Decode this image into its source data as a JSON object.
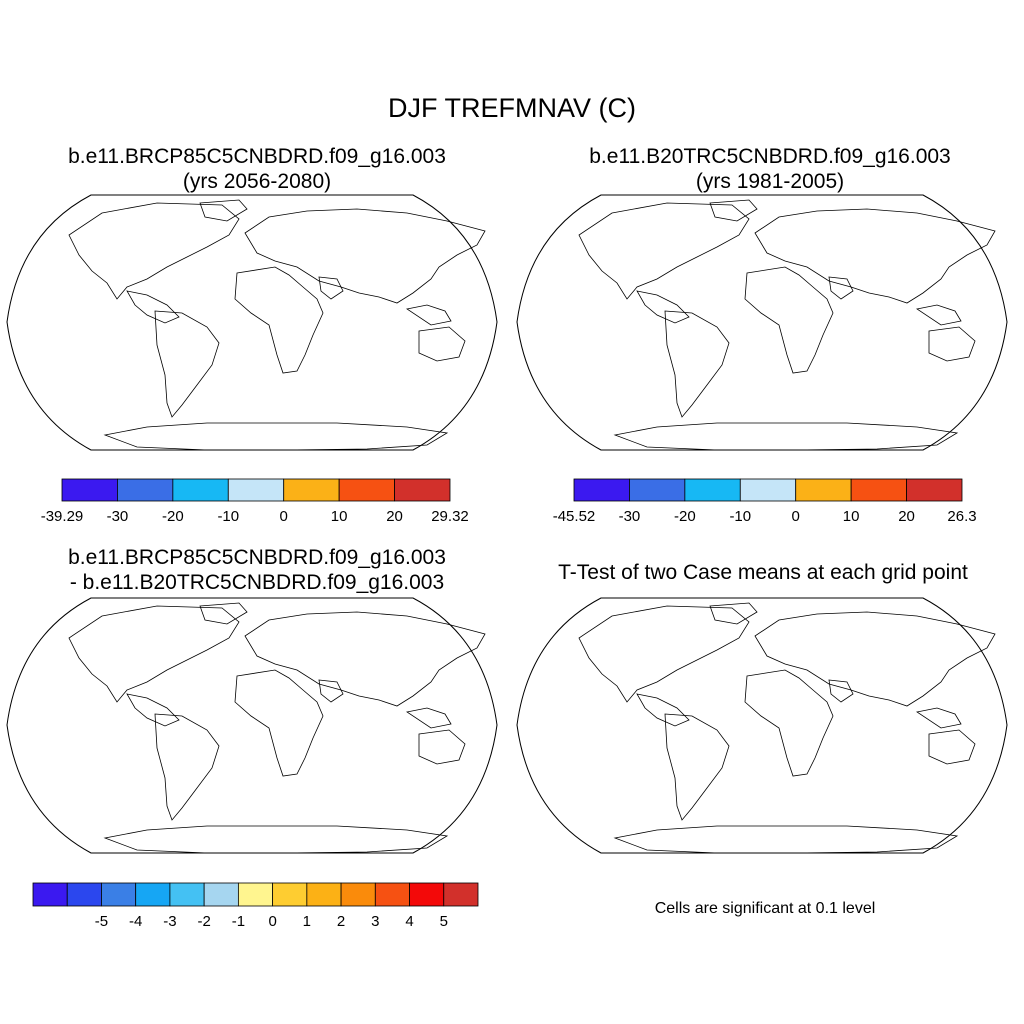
{
  "title": "DJF TREFMNAV (C)",
  "panels": [
    {
      "line1": "b.e11.BRCP85C5CNBDRD.f09_g16.003",
      "line2": "(yrs 2056-2080)"
    },
    {
      "line1": "b.e11.B20TRC5CNBDRD.f09_g16.003",
      "line2": "(yrs 1981-2005)"
    },
    {
      "line1": "b.e11.BRCP85C5CNBDRD.f09_g16.003",
      "line2": "- b.e11.B20TRC5CNBDRD.f09_g16.003"
    },
    {
      "line1": "T-Test of two Case means at each grid point"
    }
  ],
  "note": "Cells are significant at 0.1 level",
  "colorbars": [
    {
      "colors": [
        "#3b19f0",
        "#3a6ee6",
        "#17b8f4",
        "#c5e5f8",
        "#fbb117",
        "#f65112",
        "#d2302b"
      ],
      "labels": [
        "-39.29",
        "-30",
        "-20",
        "-10",
        "0",
        "10",
        "20",
        "29.32"
      ]
    },
    {
      "colors": [
        "#3b19f0",
        "#3a6ee6",
        "#17b8f4",
        "#c5e5f8",
        "#fbb117",
        "#f65112",
        "#d2302b"
      ],
      "labels": [
        "-45.52",
        "-30",
        "-20",
        "-10",
        "0",
        "10",
        "20",
        "26.3"
      ]
    },
    {
      "colors": [
        "#3b19f0",
        "#2b47ee",
        "#3a7fe6",
        "#16a6f4",
        "#44c1f3",
        "#a6d6f0",
        "#fff58f",
        "#fecd31",
        "#fcb115",
        "#fa8b0b",
        "#f65112",
        "#f30909",
        "#d2302b"
      ],
      "labels": [
        "-5",
        "-4",
        "-3",
        "-2",
        "-1",
        "0",
        "1",
        "2",
        "3",
        "4",
        "5"
      ]
    }
  ]
}
